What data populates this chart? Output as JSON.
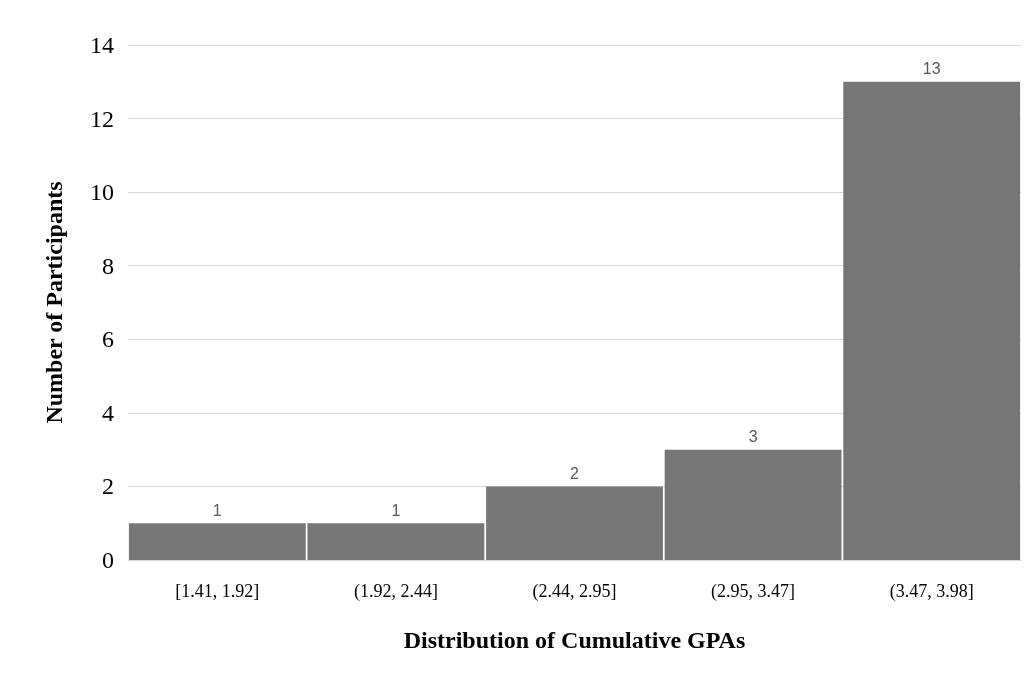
{
  "chart_data": {
    "type": "bar",
    "xlabel": "Distribution of Cumulative GPAs",
    "ylabel": "Number of Participants",
    "categories": [
      "[1.41, 1.92]",
      "(1.92, 2.44]",
      "(2.44, 2.95]",
      "(2.95, 3.47]",
      "(3.47, 3.98]"
    ],
    "values": [
      1,
      1,
      2,
      3,
      13
    ],
    "color": "#767676",
    "ylim": [
      0,
      14
    ],
    "yticks": [
      0,
      2,
      4,
      6,
      8,
      10,
      12,
      14
    ],
    "grid": "y",
    "data_labels": true
  }
}
